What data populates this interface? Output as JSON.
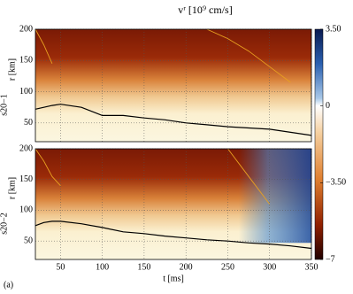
{
  "title": "vʳ [10⁹ cm/s]",
  "figure_label": "(a)",
  "colorbar": {
    "lim": [
      -7,
      3.5
    ],
    "ticks": [
      {
        "value": 3.5,
        "label": "3.50"
      },
      0,
      {
        "value": -3.5,
        "label": "−3.50"
      },
      {
        "value": -7,
        "label": "−7"
      }
    ]
  },
  "chart_data": [
    {
      "type": "line",
      "panel_label": "s20−1",
      "ylabel": "r [km]",
      "x": [
        20,
        30,
        40,
        50,
        75,
        100,
        125,
        150,
        175,
        200,
        225,
        250,
        275,
        300,
        325,
        350
      ],
      "xlim": [
        20,
        350
      ],
      "xticks": [
        50,
        100,
        150,
        200,
        250,
        300,
        350
      ],
      "ylim": [
        20,
        200
      ],
      "yticks": [
        50,
        100,
        150,
        200
      ],
      "grid": true,
      "series": [
        {
          "color": "#000000",
          "values": [
            72,
            75,
            78,
            80,
            75,
            62,
            62,
            58,
            55,
            50,
            47,
            44,
            42,
            40,
            35,
            30
          ]
        },
        {
          "color": "#e8a020",
          "values": [
            200,
            175,
            145,
            null,
            null,
            null,
            null,
            null,
            null,
            null,
            null,
            null,
            null,
            null,
            null,
            null
          ]
        },
        {
          "color": "#e8a020",
          "values": [
            null,
            null,
            null,
            null,
            null,
            null,
            null,
            null,
            null,
            null,
            200,
            185,
            165,
            140,
            115,
            null
          ]
        }
      ]
    },
    {
      "type": "line",
      "panel_label": "s20−2",
      "ylabel": "r [km]",
      "xlabel": "t [ms]",
      "x": [
        20,
        30,
        40,
        50,
        75,
        100,
        125,
        150,
        175,
        200,
        225,
        250,
        275,
        300,
        325,
        350
      ],
      "xlim": [
        20,
        350
      ],
      "xticks": [
        50,
        100,
        150,
        200,
        250,
        300,
        350
      ],
      "ylim": [
        20,
        200
      ],
      "yticks": [
        50,
        100,
        150,
        200
      ],
      "grid": true,
      "series": [
        {
          "color": "#000000",
          "values": [
            75,
            80,
            82,
            82,
            78,
            72,
            65,
            62,
            58,
            55,
            52,
            50,
            47,
            45,
            42,
            38
          ]
        },
        {
          "color": "#e8a020",
          "values": [
            200,
            180,
            155,
            140,
            null,
            null,
            null,
            null,
            null,
            null,
            null,
            null,
            null,
            null,
            null,
            null
          ]
        },
        {
          "color": "#e8a020",
          "values": [
            null,
            null,
            null,
            null,
            null,
            null,
            null,
            null,
            null,
            null,
            null,
            200,
            155,
            110,
            null,
            null
          ]
        }
      ]
    }
  ]
}
